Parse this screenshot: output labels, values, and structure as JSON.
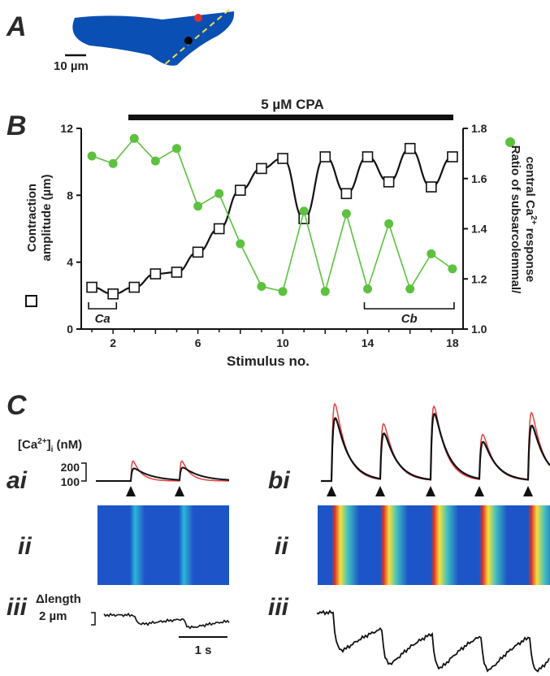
{
  "panels": {
    "a": "A",
    "b": "B",
    "c": "C"
  },
  "panel_a": {
    "scale_bar": "10 µm",
    "cell_color": "#0a4fb4",
    "line_color": "#f0e040"
  },
  "drug_bar": {
    "label": "5 µM CPA"
  },
  "chart_data": {
    "type": "line",
    "x": [
      1,
      2,
      3,
      4,
      5,
      6,
      7,
      8,
      9,
      10,
      11,
      12,
      13,
      14,
      15,
      16,
      17,
      18
    ],
    "xlabel": "Stimulus no.",
    "xticks": [
      "2",
      "6",
      "10",
      "14",
      "18"
    ],
    "xlim": [
      0.5,
      18.5
    ],
    "left_axis": {
      "label_line1": "Contraction",
      "label_line2": "amplitude (µm)",
      "ticks": [
        "0",
        "4",
        "8",
        "12"
      ],
      "ylim": [
        0,
        12
      ]
    },
    "right_axis": {
      "label_line1": "Ratio of subsarcolemmal/",
      "label_line2": "central Ca",
      "label_sup": "2+",
      "label_line2_end": "response",
      "ticks": [
        "1.0",
        "1.2",
        "1.4",
        "1.6",
        "1.8"
      ],
      "ylim": [
        1.0,
        1.8
      ]
    },
    "series": [
      {
        "axis": "left",
        "marker": "open-square",
        "color": "#111111",
        "values": [
          2.5,
          2.1,
          2.5,
          3.3,
          3.4,
          4.6,
          6.0,
          8.3,
          9.6,
          10.2,
          6.6,
          10.3,
          8.1,
          10.3,
          8.8,
          10.8,
          8.5,
          10.3
        ]
      },
      {
        "axis": "right",
        "marker": "filled-circle",
        "color": "#5cc13f",
        "values": [
          1.69,
          1.66,
          1.76,
          1.67,
          1.72,
          1.49,
          1.54,
          1.34,
          1.17,
          1.15,
          1.47,
          1.15,
          1.46,
          1.16,
          1.42,
          1.16,
          1.3,
          1.24
        ]
      }
    ],
    "brackets": [
      {
        "label": "Ca",
        "from": 1,
        "to": 3
      },
      {
        "label": "Cb",
        "from": 14,
        "to": 18
      }
    ]
  },
  "panel_c": {
    "ca_label": "[Ca",
    "ca_sup": "2+",
    "ca_sub": "i",
    "ca_unit": "(nM)",
    "ca_ticks": [
      "200",
      "100"
    ],
    "rows": {
      "ai": "ai",
      "bi": "bi",
      "ii_left": "ii",
      "ii_right": "ii",
      "iii_left": "iii",
      "iii_right": "iii"
    },
    "length_label": "Δlength",
    "length_scale": "2 µm",
    "time_scale": "1 s",
    "trace_colors": {
      "subsarcolemmal": "#e84040",
      "central": "#111111"
    }
  }
}
